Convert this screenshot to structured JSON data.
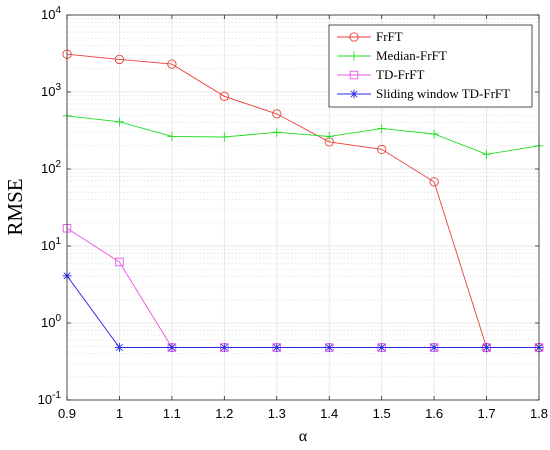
{
  "chart_data": {
    "type": "line",
    "title": "",
    "xlabel": "α",
    "ylabel": "RMSE",
    "xlim": [
      0.9,
      1.8
    ],
    "ylim": [
      0.1,
      10000
    ],
    "yscale": "log",
    "x": [
      0.9,
      1.0,
      1.1,
      1.2,
      1.3,
      1.4,
      1.5,
      1.6,
      1.7,
      1.8
    ],
    "x_tick_labels": [
      "0.9",
      "1",
      "1.1",
      "1.2",
      "1.3",
      "1.4",
      "1.5",
      "1.6",
      "1.7",
      "1.8"
    ],
    "y_ticks": [
      0.1,
      1,
      10,
      100,
      1000,
      10000
    ],
    "y_tick_labels": [
      {
        "base": "10",
        "exp": "-1"
      },
      {
        "base": "10",
        "exp": "0"
      },
      {
        "base": "10",
        "exp": "1"
      },
      {
        "base": "10",
        "exp": "2"
      },
      {
        "base": "10",
        "exp": "3"
      },
      {
        "base": "10",
        "exp": "4"
      }
    ],
    "grid": true,
    "legend_position": "top-right",
    "series": [
      {
        "name": "FrFT",
        "color": "#e8413c",
        "marker": "circle",
        "values": [
          3100,
          2650,
          2300,
          880,
          520,
          225,
          180,
          68,
          0.48,
          0.48
        ]
      },
      {
        "name": "Median-FrFT",
        "color": "#22dd22",
        "marker": "plus",
        "values": [
          490,
          410,
          265,
          260,
          300,
          265,
          335,
          285,
          155,
          200
        ]
      },
      {
        "name": "TD-FrFT",
        "color": "#e855e8",
        "marker": "square",
        "values": [
          17,
          6.2,
          0.48,
          0.48,
          0.48,
          0.48,
          0.48,
          0.48,
          0.48,
          0.48
        ]
      },
      {
        "name": "Sliding window TD-FrFT",
        "color": "#2a2ae8",
        "marker": "asterisk",
        "values": [
          4.1,
          0.48,
          0.48,
          0.48,
          0.48,
          0.48,
          0.48,
          0.48,
          0.48,
          0.48
        ]
      }
    ]
  }
}
